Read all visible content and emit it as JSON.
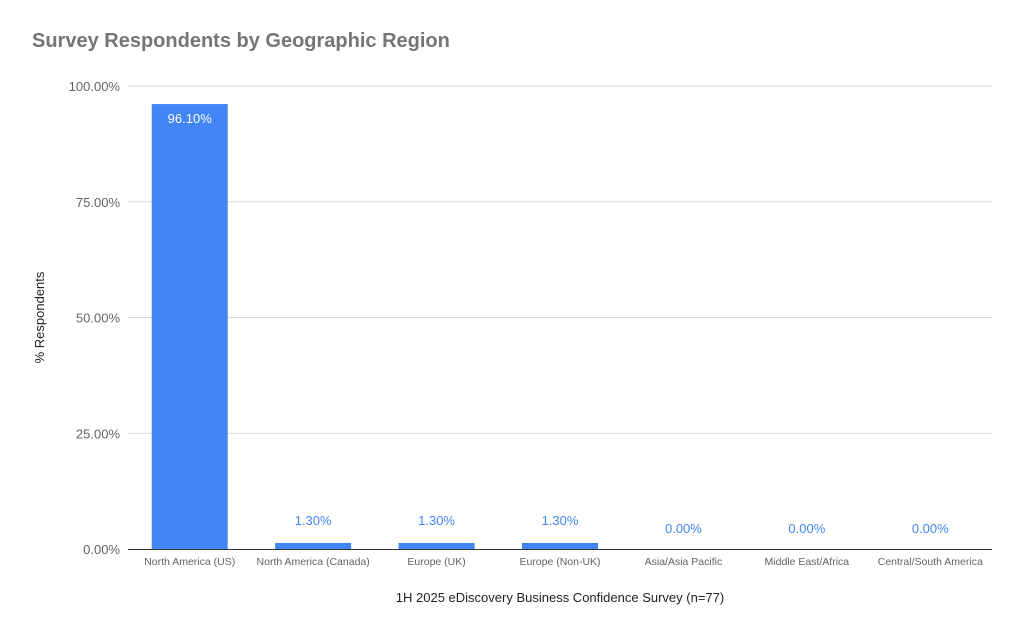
{
  "chart_data": {
    "type": "bar",
    "title": "Survey Respondents by Geographic Region",
    "xlabel": "1H 2025 eDiscovery Business Confidence Survey (n=77)",
    "ylabel": "% Respondents",
    "categories": [
      "North America (US)",
      "North America (Canada)",
      "Europe (UK)",
      "Europe (Non-UK)",
      "Asia/Asia Pacific",
      "Middle East/Africa",
      "Central/South America"
    ],
    "values": [
      96.1,
      1.3,
      1.3,
      1.3,
      0.0,
      0.0,
      0.0
    ],
    "value_labels": [
      "96.10%",
      "1.30%",
      "1.30%",
      "1.30%",
      "0.00%",
      "0.00%",
      "0.00%"
    ],
    "ylim": [
      0,
      100
    ],
    "yticks": [
      0,
      25,
      50,
      75,
      100
    ],
    "ytick_labels": [
      "0.00%",
      "25.00%",
      "50.00%",
      "75.00%",
      "100.00%"
    ],
    "grid": true,
    "legend": "none",
    "bar_color": "#4285f4"
  }
}
